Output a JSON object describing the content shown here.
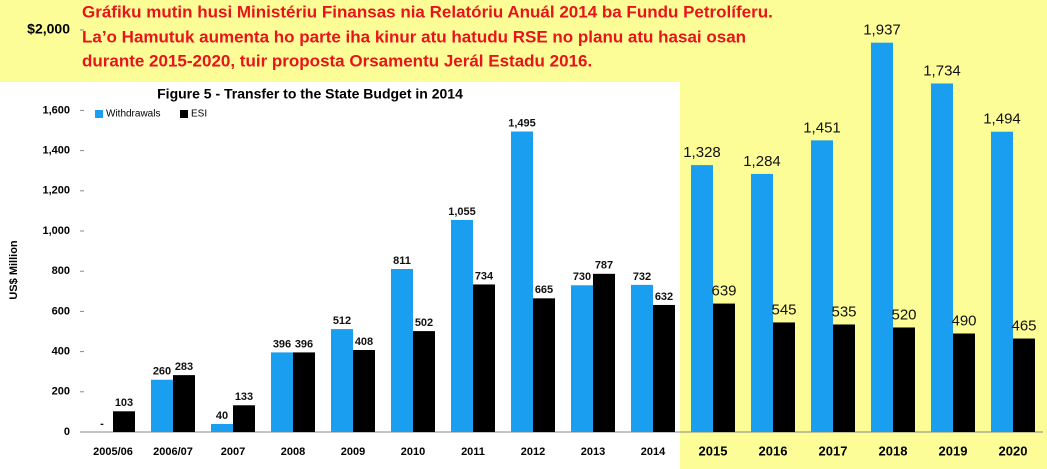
{
  "chart_data": {
    "type": "bar",
    "title": "Figure 5 - Transfer to the State Budget in 2014",
    "annotations": [
      "Gráfiku mutin husi Ministériu Finansas nia Relatóriu Anuál 2014 ba Fundu Petrolíferu.",
      "La’o Hamutuk aumenta ho parte iha kinur atu hatudu RSE no planu atu hasai osan",
      "durante 2015-2020, tuir proposta Orsamentu Jerál Estadu 2016."
    ],
    "y_label": "US$ Million",
    "categories": [
      "2005/06",
      "2006/07",
      "2007",
      "2008",
      "2009",
      "2010",
      "2011",
      "2012",
      "2013",
      "2014",
      "2015",
      "2016",
      "2017",
      "2018",
      "2019",
      "2020"
    ],
    "series": [
      {
        "name": "Withdrawals",
        "color": "#1a9ff0",
        "values": [
          0,
          260,
          40,
          396,
          512,
          811,
          1055,
          1495,
          730,
          732,
          1328,
          1284,
          1451,
          1937,
          1734,
          1494
        ],
        "value_labels": [
          "-",
          "260",
          "40",
          "396",
          "512",
          "811",
          "1,055",
          "1,495",
          "730",
          "732",
          "1,328",
          "1,284",
          "1,451",
          "1,937",
          "1,734",
          "1,494"
        ]
      },
      {
        "name": "ESI",
        "color": "#000000",
        "values": [
          103,
          283,
          133,
          396,
          408,
          502,
          734,
          665,
          787,
          632,
          639,
          545,
          535,
          520,
          490,
          465
        ],
        "value_labels": [
          "103",
          "283",
          "133",
          "396",
          "408",
          "502",
          "734",
          "665",
          "787",
          "632",
          "639",
          "545",
          "535",
          "520",
          "490",
          "465"
        ]
      }
    ],
    "ylim": [
      0,
      2000
    ],
    "yticks": [
      0,
      200,
      400,
      600,
      800,
      {
        "value": 1000,
        "label": "1,000"
      },
      {
        "value": 1200,
        "label": "1,200"
      },
      {
        "value": 1400,
        "label": "1,400"
      },
      {
        "value": 1600,
        "label": "1,600"
      },
      {
        "value": 2000,
        "label": "$2,000"
      }
    ],
    "legend": "top-left"
  }
}
